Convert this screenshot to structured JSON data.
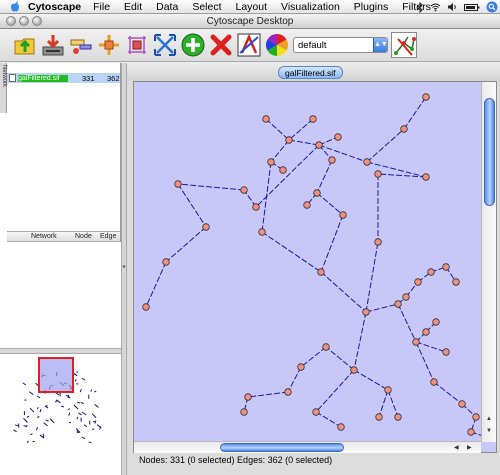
{
  "menubar": {
    "app": "Cytoscape",
    "items": [
      "File",
      "Edit",
      "Data",
      "Select",
      "Layout",
      "Visualization",
      "Plugins",
      "Filters"
    ]
  },
  "window": {
    "title": "Cytoscape Desktop"
  },
  "toolbar": {
    "icons": [
      "open-session-icon",
      "save-session-icon",
      "zoom-in-icon",
      "zoom-out-icon",
      "zoom-selected-icon",
      "zoom-fit-icon",
      "add-network-icon",
      "delete-icon",
      "vizmapper-icon",
      "color-wheel-icon",
      "layout-icon"
    ],
    "visual_style": "default"
  },
  "network_panel": {
    "side_tab": "Network",
    "columns": {
      "network": "Network",
      "nodes": "Node",
      "edges": "Edge"
    },
    "networks": [
      {
        "name": "galFiltered.sif",
        "nodes": "331",
        "edges": "362"
      }
    ]
  },
  "canvas": {
    "tab_title": "galFiltered.sif",
    "background": "#c8c8f8",
    "node_color": "#f09080",
    "edge_color": "#1a1a9a"
  },
  "status": {
    "text": "Nodes: 331 (0 selected) Edges: 362 (0 selected)"
  }
}
